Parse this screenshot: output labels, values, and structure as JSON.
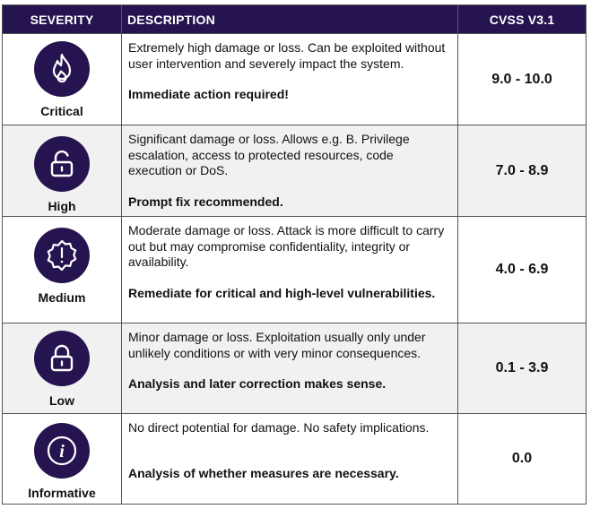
{
  "header": {
    "severity": "SEVERITY",
    "description": "DESCRIPTION",
    "cvss": "CVSS V3.1"
  },
  "rows": [
    {
      "icon": "flame-icon",
      "severity": "Critical",
      "description": "Extremely high damage or loss. Can be exploited without user intervention and severely impact the system.",
      "action": "Immediate action required!",
      "cvss": "9.0 - 10.0"
    },
    {
      "icon": "unlocked-padlock-icon",
      "severity": "High",
      "description": "Significant damage or loss. Allows e.g. B. Privilege escalation, access to protected resources, code execution or DoS.",
      "action": "Prompt fix recommended.",
      "cvss": "7.0 - 8.9"
    },
    {
      "icon": "warning-badge-icon",
      "severity": "Medium",
      "description": "Moderate damage or loss. Attack is more difficult to carry out but may compromise confidentiality, integrity or availability.",
      "action": "Remediate for critical and high-level vulnerabilities.",
      "cvss": "4.0 - 6.9"
    },
    {
      "icon": "locked-padlock-icon",
      "severity": "Low",
      "description": "Minor damage or loss. Exploitation usually only under unlikely conditions or with very minor consequences.",
      "action": "Analysis and later correction makes sense.",
      "cvss": "0.1 - 3.9"
    },
    {
      "icon": "info-icon",
      "severity": "Informative",
      "description": "No direct potential for damage. No safety implications.",
      "action": "Analysis of whether measures are necessary.",
      "cvss": "0.0"
    }
  ],
  "colors": {
    "header_bg": "#261450",
    "icon_bg": "#261450",
    "alt_row_bg": "#f1f1f1"
  }
}
